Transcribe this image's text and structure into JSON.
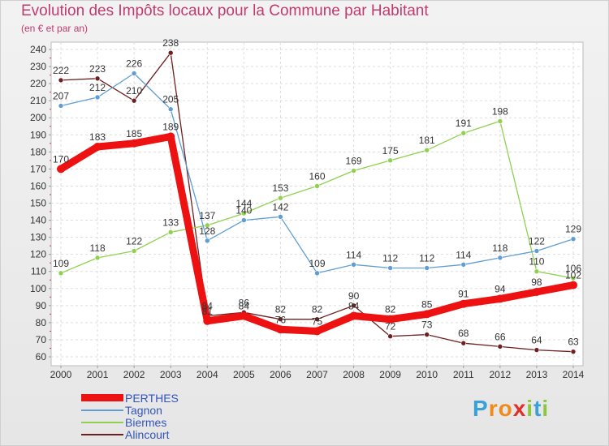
{
  "title": "Evolution des Impôts locaux pour la Commune par Habitant",
  "subtitle": "(en € et par an)",
  "logo": {
    "letters": [
      "P",
      "r",
      "o",
      "x",
      "i",
      "t",
      "i"
    ],
    "colors": [
      "#3aa0d8",
      "#f08a1a",
      "#f08a1a",
      "#e0302a",
      "#8cc63e",
      "#3aa0d8",
      "#8cc63e"
    ]
  },
  "chart_data": {
    "type": "line",
    "x": [
      2000,
      2001,
      2002,
      2003,
      2004,
      2005,
      2006,
      2007,
      2008,
      2009,
      2010,
      2011,
      2012,
      2013,
      2014
    ],
    "ylim": [
      60,
      240
    ],
    "yticks": [
      60,
      70,
      80,
      90,
      100,
      110,
      120,
      130,
      140,
      150,
      160,
      170,
      180,
      190,
      200,
      210,
      220,
      230,
      240
    ],
    "grid": true,
    "legend_position": "bottom-left",
    "series": [
      {
        "name": "PERTHES",
        "color": "#ee1111",
        "values": [
          170,
          183,
          185,
          189,
          81,
          84,
          76,
          75,
          84,
          82,
          85,
          91,
          94,
          98,
          102
        ],
        "labels": [
          "170",
          "183",
          "185",
          "189",
          "81",
          "84",
          "76",
          "75",
          "84",
          "82",
          "85",
          "91",
          "94",
          "98",
          "102"
        ]
      },
      {
        "name": "Tagnon",
        "color": "#5f9dd4",
        "values": [
          207,
          212,
          226,
          205,
          128,
          140,
          142,
          109,
          114,
          112,
          112,
          114,
          118,
          122,
          129
        ],
        "labels": [
          "207",
          "212",
          "226",
          "205",
          "128",
          "140",
          "142",
          "109",
          "114",
          "112",
          "112",
          "114",
          "118",
          "122",
          "129"
        ]
      },
      {
        "name": "Biermes",
        "color": "#8fd14f",
        "values": [
          109,
          118,
          122,
          133,
          137,
          144,
          153,
          160,
          169,
          175,
          181,
          191,
          198,
          110,
          106
        ],
        "labels": [
          "109",
          "118",
          "122",
          "133",
          "137",
          "144",
          "153",
          "160",
          "169",
          "175",
          "181",
          "191",
          "198",
          "110",
          "106"
        ]
      },
      {
        "name": "Alincourt",
        "color": "#6e1f1f",
        "values": [
          222,
          223,
          210,
          238,
          84,
          86,
          82,
          82,
          90,
          72,
          73,
          68,
          66,
          64,
          63
        ],
        "labels": [
          "222",
          "223",
          "210",
          "238",
          "84",
          "86",
          "82",
          "82",
          "90",
          "72",
          "73",
          "68",
          "66",
          "64",
          "63"
        ]
      }
    ]
  }
}
